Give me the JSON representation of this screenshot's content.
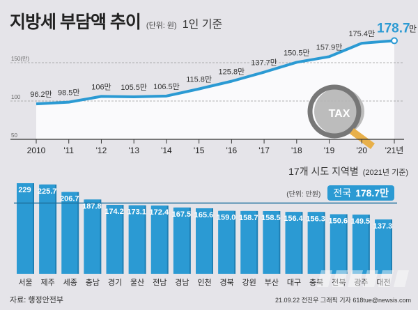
{
  "header": {
    "title": "지방세 부담액 추이",
    "unit": "(단위: 원)",
    "basis": "1인 기준"
  },
  "chart_data": [
    {
      "type": "line",
      "title": "지방세 부담액 추이",
      "x": [
        "2010",
        "'11",
        "'12",
        "'13",
        "'14",
        "'15",
        "'16",
        "'17",
        "'18",
        "'19",
        "'20",
        "'21년"
      ],
      "values": [
        96.2,
        98.5,
        106,
        105.5,
        106.5,
        115.8,
        125.8,
        137.7,
        150.5,
        157.9,
        175.4,
        178.7
      ],
      "labels": [
        "96.2만",
        "98.5만",
        "106만",
        "105.5만",
        "106.5만",
        "115.8만",
        "125.8만",
        "137.7만",
        "150.5만",
        "157.9만",
        "175.4만",
        "178.7"
      ],
      "highlight_suffix": "만",
      "yticks": [
        "50",
        "100",
        "150(만)"
      ],
      "ytick_values": [
        50,
        100,
        150
      ],
      "ylim": [
        50,
        190
      ],
      "grid": true,
      "color": "#2b9ad3"
    },
    {
      "type": "bar",
      "title": "17개 시도 지역별",
      "subtitle": "(2021년 기준)",
      "unit": "(단위: 만원)",
      "reference": {
        "label": "전국",
        "value": 178.7,
        "text": "178.7만"
      },
      "categories": [
        "서울",
        "제주",
        "세종",
        "충남",
        "경기",
        "울산",
        "전남",
        "경남",
        "인천",
        "경북",
        "강원",
        "부산",
        "대구",
        "충북",
        "전북",
        "광주",
        "대전"
      ],
      "values": [
        229,
        225.7,
        206.7,
        187.8,
        174.2,
        173.1,
        172.4,
        167.5,
        165.6,
        159.0,
        158.7,
        158.5,
        156.4,
        156.3,
        150.6,
        149.5,
        137.3
      ],
      "value_labels": [
        "229",
        "225.7",
        "206.7",
        "187.8",
        "174.2",
        "173.1",
        "172.4",
        "167.5",
        "165.6",
        "159.0",
        "158.7",
        "158.5",
        "156.4",
        "156.3",
        "150.6",
        "149.5",
        "137.3"
      ],
      "ylim": [
        0,
        229
      ],
      "color": "#2b9ad3"
    }
  ],
  "footer": {
    "source": "자료: 행정안전부",
    "credit": "21.09.22 전진우 그래픽 기자 618tue@newsis.com",
    "watermark": "NEWSIS"
  },
  "illustration": {
    "tax_label": "TAX"
  }
}
